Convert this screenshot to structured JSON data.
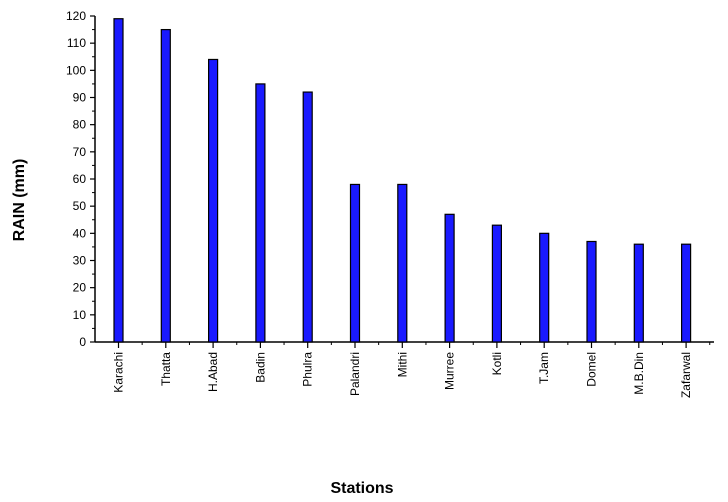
{
  "chart_data": {
    "type": "bar",
    "title": "",
    "xlabel": "Stations",
    "ylabel": "RAIN (mm)",
    "ylim": [
      0,
      120
    ],
    "yticks": [
      0,
      10,
      20,
      30,
      40,
      50,
      60,
      70,
      80,
      90,
      100,
      110,
      120
    ],
    "categories": [
      "Karachi",
      "Thatta",
      "H.Abad",
      "Badin",
      "Phulra",
      "Palandri",
      "Mithi",
      "Murree",
      "Kotli",
      "T.Jam",
      "Domel",
      "M.B.Din",
      "Zafarwal"
    ],
    "values": [
      119,
      115,
      104,
      95,
      92,
      58,
      58,
      47,
      43,
      40,
      37,
      36,
      36
    ],
    "grid": false,
    "legend": "none",
    "bar_color": "#1a1aff",
    "bar_edge_color": "#000000"
  }
}
